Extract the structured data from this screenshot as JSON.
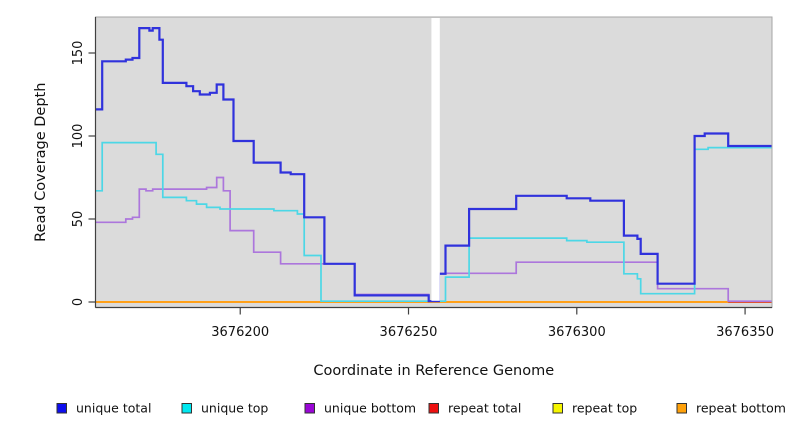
{
  "figure": {
    "background": "#ffffff",
    "plot_bg": "#DBDBDB",
    "plot_border_color": "#A6A6A6",
    "axis_line_color": "#404040",
    "tick_color": "#404040",
    "text_color": "#111111",
    "gap_color": "#ffffff"
  },
  "chart_data": {
    "type": "line",
    "step": true,
    "title": "",
    "xlabel": "Coordinate in Reference Genome",
    "ylabel": "Read Coverage Depth",
    "xlim": [
      3676157,
      3676358
    ],
    "ylim": [
      0,
      172
    ],
    "x_ticks": [
      3676200,
      3676250,
      3676300,
      3676350
    ],
    "x_tick_labels": [
      "3676200",
      "3676250",
      "3676300",
      "3676350"
    ],
    "y_ticks": [
      0,
      50,
      100,
      150
    ],
    "y_tick_labels": [
      "0",
      "50",
      "100",
      "150"
    ],
    "grid": false,
    "gap_region": [
      3676256.8,
      3676259.3
    ],
    "legend_position": "bottom",
    "series": [
      {
        "name": "unique total",
        "line_color": "#3032DC",
        "swatch_color": "#0E0EEE",
        "width": 2.2,
        "draw_order": 6,
        "x_end": 3676358,
        "points": [
          [
            3676157,
            116
          ],
          [
            3676159,
            145
          ],
          [
            3676166,
            146
          ],
          [
            3676168,
            147
          ],
          [
            3676170,
            165
          ],
          [
            3676173,
            163.5
          ],
          [
            3676174,
            165
          ],
          [
            3676176,
            158
          ],
          [
            3676177,
            132
          ],
          [
            3676184,
            130
          ],
          [
            3676186,
            127
          ],
          [
            3676188,
            125
          ],
          [
            3676191,
            126
          ],
          [
            3676193,
            131
          ],
          [
            3676195,
            122
          ],
          [
            3676198,
            97
          ],
          [
            3676204,
            84
          ],
          [
            3676212,
            78
          ],
          [
            3676215,
            77
          ],
          [
            3676219,
            51
          ],
          [
            3676225,
            23
          ],
          [
            3676234,
            4
          ],
          [
            3676256,
            0.5
          ],
          [
            3676259,
            17
          ],
          [
            3676261,
            34
          ],
          [
            3676268,
            56
          ],
          [
            3676282,
            64
          ],
          [
            3676297,
            62.5
          ],
          [
            3676304,
            61
          ],
          [
            3676314,
            40
          ],
          [
            3676318,
            38
          ],
          [
            3676319,
            29
          ],
          [
            3676324,
            11
          ],
          [
            3676335,
            100
          ],
          [
            3676338,
            101.5
          ],
          [
            3676345,
            94
          ]
        ]
      },
      {
        "name": "unique top",
        "line_color": "#4CD7E6",
        "swatch_color": "#00E8F0",
        "width": 1.7,
        "draw_order": 5,
        "x_end": 3676358,
        "points": [
          [
            3676157,
            67
          ],
          [
            3676159,
            96
          ],
          [
            3676175,
            89
          ],
          [
            3676177,
            63
          ],
          [
            3676184,
            61
          ],
          [
            3676187,
            59
          ],
          [
            3676190,
            57
          ],
          [
            3676194,
            56
          ],
          [
            3676210,
            55
          ],
          [
            3676217,
            53
          ],
          [
            3676219,
            28
          ],
          [
            3676224,
            0.5
          ],
          [
            3676261,
            15
          ],
          [
            3676268,
            38.5
          ],
          [
            3676297,
            37
          ],
          [
            3676303,
            36
          ],
          [
            3676314,
            17
          ],
          [
            3676318,
            14
          ],
          [
            3676319,
            5
          ],
          [
            3676335,
            92
          ],
          [
            3676339,
            93
          ]
        ]
      },
      {
        "name": "unique bottom",
        "line_color": "#AC76DC",
        "swatch_color": "#9A06D6",
        "width": 1.7,
        "draw_order": 4,
        "x_end": 3676358,
        "points": [
          [
            3676157,
            48
          ],
          [
            3676166,
            50
          ],
          [
            3676168,
            51
          ],
          [
            3676170,
            68
          ],
          [
            3676172,
            67
          ],
          [
            3676174,
            68
          ],
          [
            3676190,
            69
          ],
          [
            3676193,
            75
          ],
          [
            3676195,
            67
          ],
          [
            3676197,
            43
          ],
          [
            3676204,
            30
          ],
          [
            3676212,
            23
          ],
          [
            3676234,
            4.5
          ],
          [
            3676256,
            0.5
          ],
          [
            3676259,
            17.3
          ],
          [
            3676282,
            24
          ],
          [
            3676324,
            8
          ],
          [
            3676345,
            0.5
          ]
        ]
      },
      {
        "name": "repeat total",
        "line_color": "#DD2222",
        "swatch_color": "#EE1111",
        "width": 1.6,
        "draw_order": 2,
        "x_end": 3676358,
        "points": [
          [
            3676157,
            0
          ]
        ]
      },
      {
        "name": "repeat top",
        "line_color": "#F0F000",
        "swatch_color": "#F5F500",
        "width": 1.6,
        "draw_order": 1,
        "x_end": 3676358,
        "points": [
          [
            3676157,
            0
          ]
        ]
      },
      {
        "name": "repeat bottom",
        "line_color": "#FFA018",
        "swatch_color": "#FFA10A",
        "width": 2,
        "draw_order": 3,
        "x_end": 3676345,
        "points": [
          [
            3676157,
            0
          ]
        ]
      }
    ]
  }
}
